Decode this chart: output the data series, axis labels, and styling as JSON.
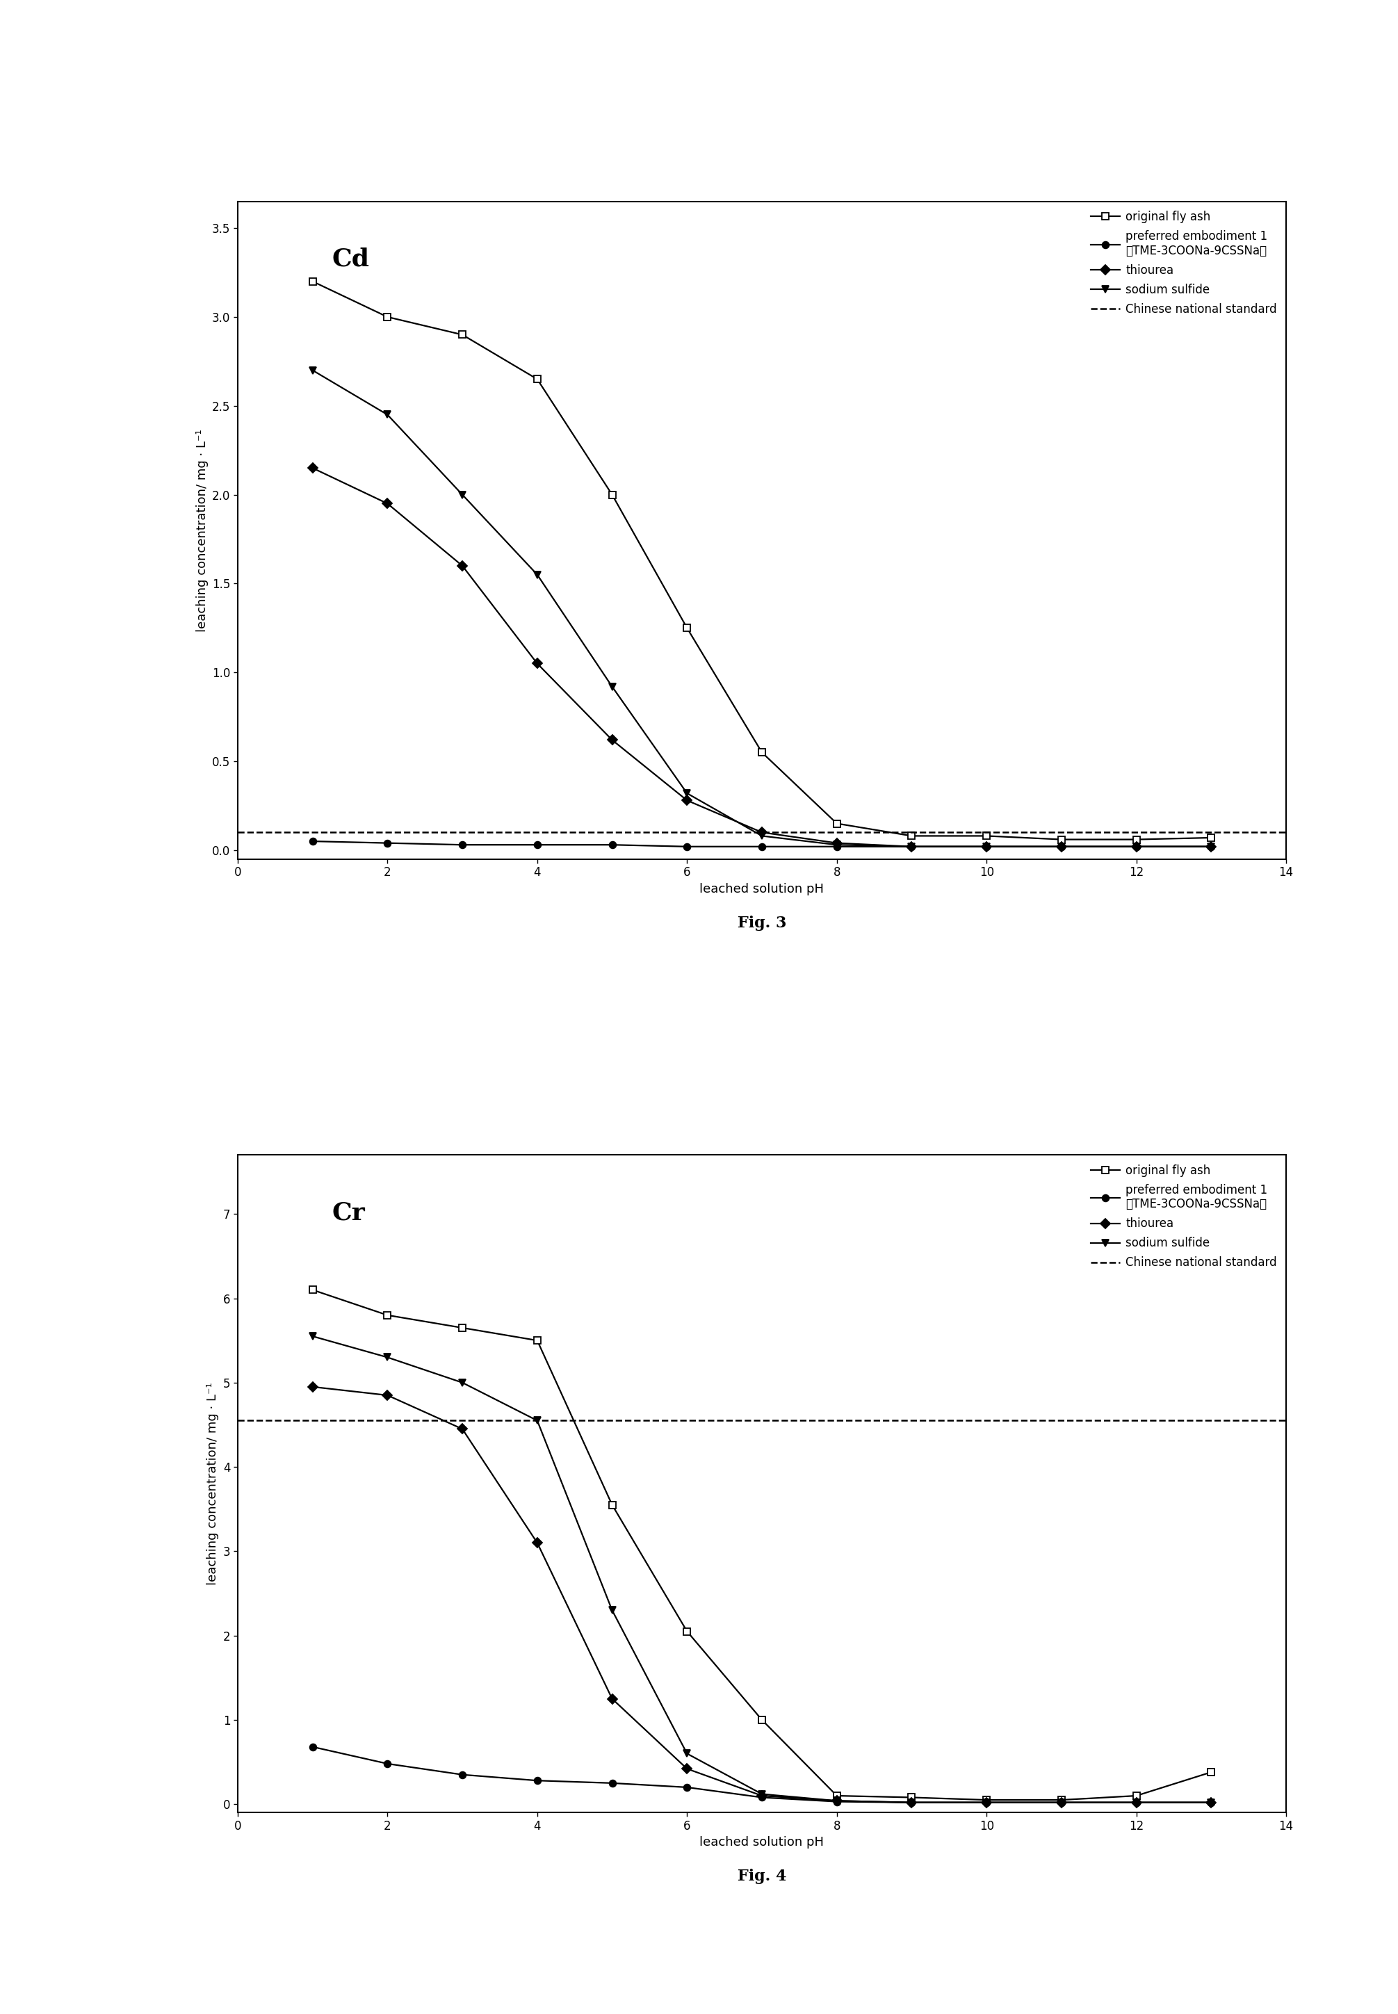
{
  "fig3": {
    "title": "Cd",
    "xlabel": "leached solution pH",
    "ylabel": "leaching concentration/ mg · L⁻¹",
    "ylim": [
      -0.05,
      3.65
    ],
    "yticks": [
      0.0,
      0.5,
      1.0,
      1.5,
      2.0,
      2.5,
      3.0,
      3.5
    ],
    "xlim": [
      0,
      14
    ],
    "xticks": [
      0,
      2,
      4,
      6,
      8,
      10,
      12,
      14
    ],
    "chinese_standard": 0.1,
    "series": {
      "original_fly_ash": {
        "x": [
          1,
          2,
          3,
          4,
          5,
          6,
          7,
          8,
          9,
          10,
          11,
          12,
          13
        ],
        "y": [
          3.2,
          3.0,
          2.9,
          2.65,
          2.0,
          1.25,
          0.55,
          0.15,
          0.08,
          0.08,
          0.06,
          0.06,
          0.07
        ],
        "label": "original fly ash",
        "marker": "s",
        "fillstyle": "none"
      },
      "preferred": {
        "x": [
          1,
          2,
          3,
          4,
          5,
          6,
          7,
          8,
          9,
          10,
          11,
          12,
          13
        ],
        "y": [
          0.05,
          0.04,
          0.03,
          0.03,
          0.03,
          0.02,
          0.02,
          0.02,
          0.02,
          0.02,
          0.02,
          0.02,
          0.02
        ],
        "label": "preferred embodiment 1\n（TME-3COONa-9CSSNa）",
        "marker": "o",
        "fillstyle": "full"
      },
      "thiourea": {
        "x": [
          1,
          2,
          3,
          4,
          5,
          6,
          7,
          8,
          9,
          10,
          11,
          12,
          13
        ],
        "y": [
          2.15,
          1.95,
          1.6,
          1.05,
          0.62,
          0.28,
          0.1,
          0.04,
          0.02,
          0.02,
          0.02,
          0.02,
          0.02
        ],
        "label": "thiourea",
        "marker": "D",
        "fillstyle": "full"
      },
      "sodium_sulfide": {
        "x": [
          1,
          2,
          3,
          4,
          5,
          6,
          7,
          8,
          9,
          10,
          11,
          12,
          13
        ],
        "y": [
          2.7,
          2.45,
          2.0,
          1.55,
          0.92,
          0.32,
          0.08,
          0.03,
          0.02,
          0.02,
          0.02,
          0.02,
          0.02
        ],
        "label": "sodium sulfide",
        "marker": "v",
        "fillstyle": "full"
      }
    }
  },
  "fig4": {
    "title": "Cr",
    "xlabel": "leached solution pH",
    "ylabel": "leaching concentration/ mg · L⁻¹",
    "ylim": [
      -0.1,
      7.7
    ],
    "yticks": [
      0,
      1,
      2,
      3,
      4,
      5,
      6,
      7
    ],
    "xlim": [
      0,
      14
    ],
    "xticks": [
      0,
      2,
      4,
      6,
      8,
      10,
      12,
      14
    ],
    "chinese_standard": 4.55,
    "series": {
      "original_fly_ash": {
        "x": [
          1,
          2,
          3,
          4,
          5,
          6,
          7,
          8,
          9,
          10,
          11,
          12,
          13
        ],
        "y": [
          6.1,
          5.8,
          5.65,
          5.5,
          3.55,
          2.05,
          1.0,
          0.1,
          0.08,
          0.05,
          0.05,
          0.1,
          0.38
        ],
        "label": "original fly ash",
        "marker": "s",
        "fillstyle": "none"
      },
      "preferred": {
        "x": [
          1,
          2,
          3,
          4,
          5,
          6,
          7,
          8,
          9,
          10,
          11,
          12,
          13
        ],
        "y": [
          0.68,
          0.48,
          0.35,
          0.28,
          0.25,
          0.2,
          0.08,
          0.03,
          0.02,
          0.02,
          0.02,
          0.02,
          0.02
        ],
        "label": "preferred embodiment 1\n（TME-3COONa-9CSSNa）",
        "marker": "o",
        "fillstyle": "full"
      },
      "thiourea": {
        "x": [
          1,
          2,
          3,
          4,
          5,
          6,
          7,
          8,
          9,
          10,
          11,
          12,
          13
        ],
        "y": [
          4.95,
          4.85,
          4.45,
          3.1,
          1.25,
          0.42,
          0.1,
          0.04,
          0.02,
          0.02,
          0.02,
          0.02,
          0.02
        ],
        "label": "thiourea",
        "marker": "D",
        "fillstyle": "full"
      },
      "sodium_sulfide": {
        "x": [
          1,
          2,
          3,
          4,
          5,
          6,
          7,
          8,
          9,
          10,
          11,
          12,
          13
        ],
        "y": [
          5.55,
          5.3,
          5.0,
          4.55,
          2.3,
          0.6,
          0.12,
          0.04,
          0.02,
          0.02,
          0.02,
          0.02,
          0.02
        ],
        "label": "sodium sulfide",
        "marker": "v",
        "fillstyle": "full"
      }
    }
  },
  "fig3_label": "Fig. 3",
  "fig4_label": "Fig. 4",
  "background_color": "#ffffff",
  "marker_size": 7,
  "line_width": 1.6,
  "legend_fontsize": 12,
  "axis_label_fontsize": 13,
  "tick_fontsize": 12,
  "title_fontsize": 26,
  "figlabel_fontsize": 16
}
